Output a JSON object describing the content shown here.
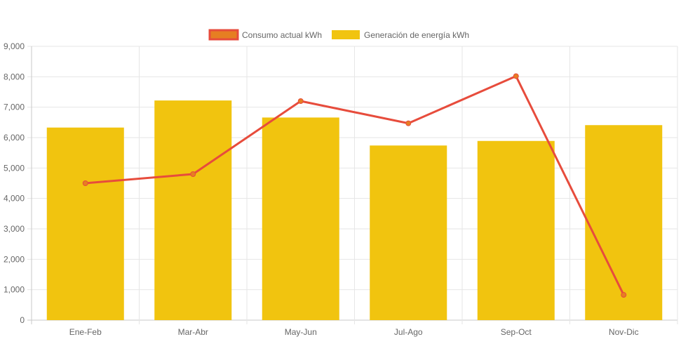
{
  "chart_data": {
    "type": "bar",
    "categories": [
      "Ene-Feb",
      "Mar-Abr",
      "May-Jun",
      "Jul-Ago",
      "Sep-Oct",
      "Nov-Dic"
    ],
    "series": [
      {
        "name": "Consumo actual kWh",
        "type": "line",
        "color": "#e74c3c",
        "legend_fill": "#e67e22",
        "values": [
          4500,
          4800,
          7200,
          6470,
          8020,
          830
        ]
      },
      {
        "name": "Generación de energía kWh",
        "type": "bar",
        "color": "#f1c40f",
        "values": [
          6330,
          7220,
          6660,
          5740,
          5890,
          6410
        ]
      }
    ],
    "yticks": [
      "0",
      "1,000",
      "2,000",
      "3,000",
      "4,000",
      "5,000",
      "6,000",
      "7,000",
      "8,000",
      "9,000"
    ],
    "ylim": [
      0,
      9000
    ],
    "grid": true,
    "legend_position": "top-center",
    "title": "",
    "xlabel": "",
    "ylabel": ""
  }
}
